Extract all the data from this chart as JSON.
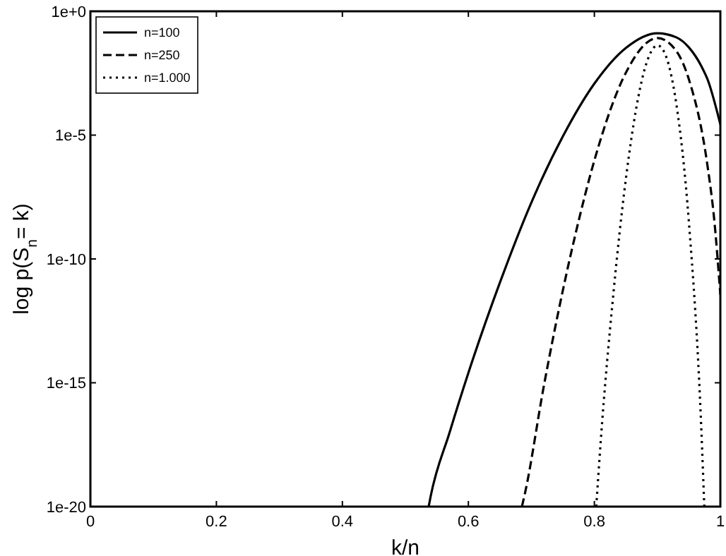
{
  "chart_data": {
    "type": "line",
    "xlabel": "k/n",
    "ylabel": "log p(S$_{n}$= k)",
    "log": "y",
    "xlim": [
      0,
      1
    ],
    "ylim": [
      1e-20,
      1
    ],
    "xticks": [
      0,
      0.2,
      0.4,
      0.6,
      0.8,
      1
    ],
    "yticks": [
      {
        "value": 1e-20,
        "label": "1e-20"
      },
      {
        "value": 1e-15,
        "label": "1e-15"
      },
      {
        "value": 1e-10,
        "label": "1e-10"
      },
      {
        "value": 1e-05,
        "label": "1e-5"
      },
      {
        "value": 1,
        "label": "1e+0"
      }
    ],
    "grid": false,
    "legend": "top left",
    "series": [
      {
        "name": "n=100",
        "color": "#000000",
        "line_style": "solid",
        "x": [
          0.537,
          0.54,
          0.57,
          0.6,
          0.65,
          0.7,
          0.75,
          0.8,
          0.85,
          0.9,
          0.93,
          0.95,
          0.97,
          0.98,
          1.0
        ],
        "values": [
          1e-20,
          2.5e-20,
          9.5e-18,
          2.5e-15,
          1.1e-11,
          1.9e-08,
          8.9e-06,
          0.0012,
          0.033,
          0.13,
          0.089,
          0.035,
          0.006,
          0.0017,
          2.7e-05
        ]
      },
      {
        "name": "n=250",
        "color": "#000000",
        "line_style": "dashed",
        "x": [
          0.685,
          0.69,
          0.72,
          0.75,
          0.77,
          0.8,
          0.85,
          0.9,
          0.93,
          0.95,
          0.98,
          0.99,
          1.0
        ],
        "values": [
          1e-20,
          3.6e-20,
          7.9e-16,
          5.4e-12,
          1e-09,
          9.5e-07,
          0.0033,
          0.083,
          0.025,
          0.0018,
          4.9e-07,
          4.6e-09,
          3.6e-12
        ]
      },
      {
        "name": "n=1.000",
        "color": "#000000",
        "line_style": "dotted",
        "x": [
          0.803,
          0.81,
          0.83,
          0.85,
          0.87,
          0.88,
          0.89,
          0.9,
          0.91,
          0.92,
          0.93,
          0.95,
          0.97,
          0.9745
        ],
        "values": [
          1e-20,
          4e-18,
          3.5e-12,
          1.7e-07,
          0.00037,
          0.0048,
          0.023,
          0.042,
          0.025,
          0.0044,
          0.00019,
          3.2e-09,
          1e-17,
          1e-20
        ]
      }
    ]
  }
}
